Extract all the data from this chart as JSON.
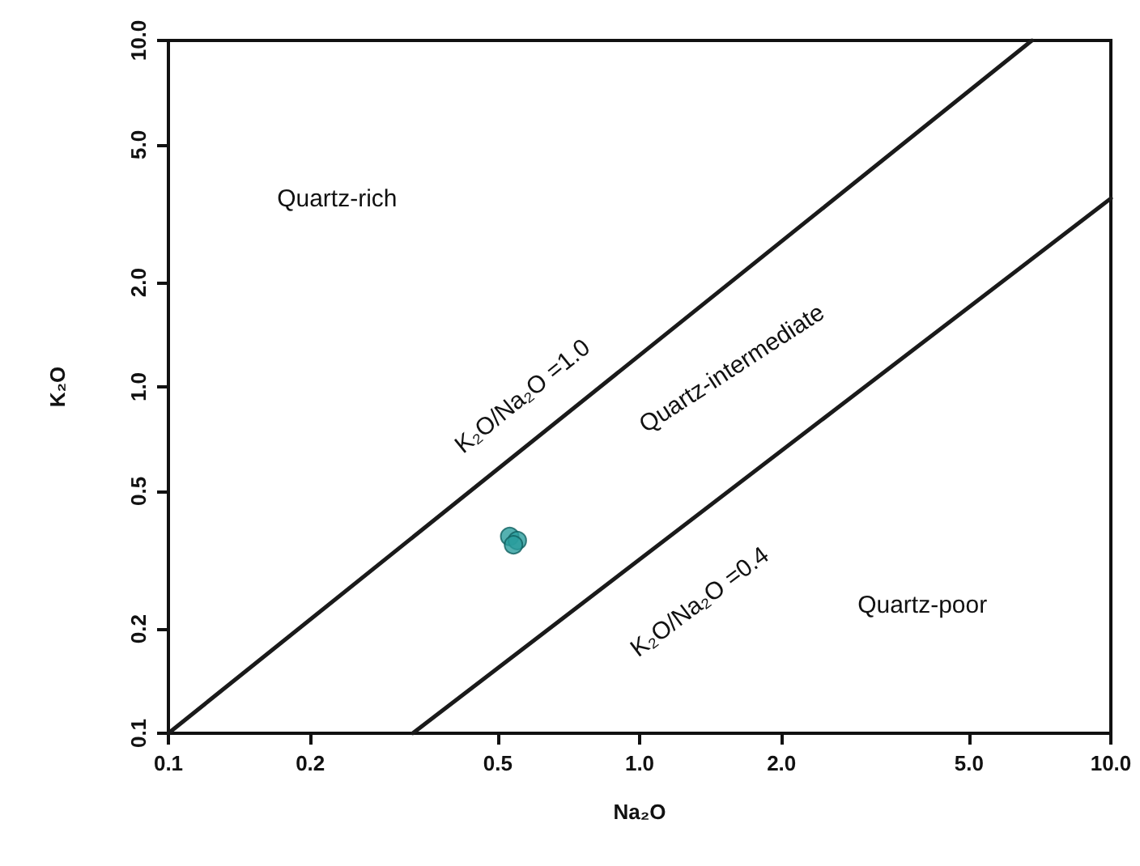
{
  "chart_data": {
    "type": "scatter",
    "xlabel": "Na₂O",
    "ylabel": "K₂O",
    "log": "xy",
    "grid": false,
    "marker": "circle",
    "xlim": [
      0.1,
      10
    ],
    "ylim": [
      0.1,
      10
    ],
    "xticks": [
      0.1,
      0.2,
      0.5,
      {
        "value": 1,
        "label": "1.0"
      },
      {
        "value": 2,
        "label": "2.0"
      },
      {
        "value": 5,
        "label": "5.0"
      },
      {
        "value": 10,
        "label": "10.0"
      }
    ],
    "yticks": [
      0.1,
      0.2,
      0.5,
      {
        "value": 1,
        "label": "1.0"
      },
      {
        "value": 2,
        "label": "2.0"
      },
      {
        "value": 5,
        "label": "5.0"
      },
      {
        "value": 10,
        "label": "10.0"
      }
    ],
    "series": [
      {
        "type": "line",
        "x": [
          0.1,
          6.8
        ],
        "values": [
          0.1,
          10
        ],
        "color": "#1a1a1a",
        "line_style": "solid",
        "marker": "none"
      },
      {
        "type": "line",
        "x": [
          0.33,
          10
        ],
        "values": [
          0.1,
          3.5
        ],
        "color": "#1a1a1a",
        "line_style": "solid",
        "marker": "none"
      },
      {
        "x": [
          0.53,
          0.55,
          0.54
        ],
        "values": [
          0.37,
          0.36,
          0.35
        ],
        "color": "#2a9d9d"
      }
    ],
    "annotations": [
      "K₂O/Na₂O =1.0",
      "K₂O/Na₂O =0.4",
      "Quartz-rich",
      "Quartz-intermediate",
      "Quartz-poor"
    ]
  }
}
